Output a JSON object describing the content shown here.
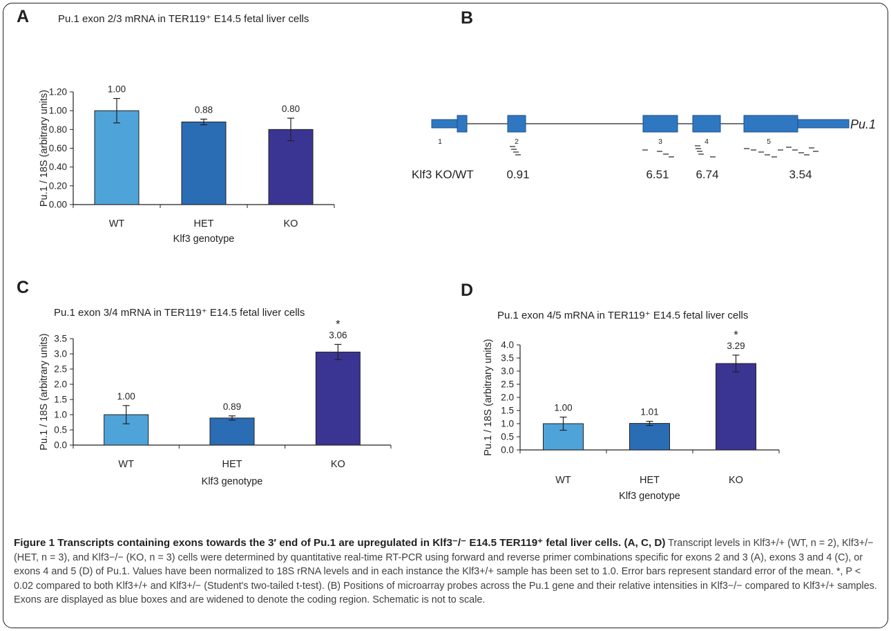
{
  "panels": {
    "a": {
      "letter": "A",
      "title": "Pu.1 exon 2/3 mRNA in TER119⁺ E14.5 fetal liver cells"
    },
    "b": {
      "letter": "B",
      "gene_label": "Pu.1",
      "ratio_label": "Klf3 KO/WT",
      "exon_numbers": [
        "1",
        "2",
        "3",
        "4",
        "5"
      ],
      "ratios": [
        "0.91",
        "6.51",
        "6.74",
        "3.54"
      ]
    },
    "c": {
      "letter": "C",
      "title": "Pu.1 exon 3/4 mRNA in TER119⁺ E14.5 fetal liver cells"
    },
    "d": {
      "letter": "D",
      "title": "Pu.1 exon 4/5 mRNA in TER119⁺ E14.5 fetal liver cells"
    }
  },
  "colors": {
    "wt": "#4ea3d8",
    "het": "#2a6db5",
    "ko": "#3a3592",
    "exon": "#2f77c1",
    "axis": "#231f20"
  },
  "chart_data": [
    {
      "id": "A",
      "type": "bar",
      "title": "Pu.1 exon 2/3 mRNA in TER119⁺ E14.5 fetal liver cells",
      "xlabel": "Klf3 genotype",
      "ylabel": "Pu.1 / 18S (arbitrary units)",
      "categories": [
        "WT",
        "HET",
        "KO"
      ],
      "values": [
        1.0,
        0.88,
        0.8
      ],
      "value_labels": [
        "1.00",
        "0.88",
        "0.80"
      ],
      "errors": [
        0.13,
        0.03,
        0.12
      ],
      "significance": [
        "",
        "",
        ""
      ],
      "ylim": [
        0,
        1.2
      ],
      "ticks": [
        "0.00",
        "0.20",
        "0.40",
        "0.60",
        "0.80",
        "1.00",
        "1.20"
      ],
      "grid": false
    },
    {
      "id": "C",
      "type": "bar",
      "title": "Pu.1 exon 3/4 mRNA in TER119⁺ E14.5 fetal liver cells",
      "xlabel": "Klf3 genotype",
      "ylabel": "Pu.1 / 18S (arbitrary units)",
      "categories": [
        "WT",
        "HET",
        "KO"
      ],
      "values": [
        1.0,
        0.89,
        3.06
      ],
      "value_labels": [
        "1.00",
        "0.89",
        "3.06"
      ],
      "errors": [
        0.3,
        0.07,
        0.25
      ],
      "significance": [
        "",
        "",
        "*"
      ],
      "ylim": [
        0,
        3.5
      ],
      "ticks": [
        "0.0",
        "0.5",
        "1.0",
        "1.5",
        "2.0",
        "2.5",
        "3.0",
        "3.5"
      ],
      "grid": false
    },
    {
      "id": "D",
      "type": "bar",
      "title": "Pu.1 exon 4/5 mRNA in TER119⁺ E14.5 fetal liver cells",
      "xlabel": "Klf3 genotype",
      "ylabel": "Pu.1 / 18S (arbitrary units)",
      "categories": [
        "WT",
        "HET",
        "KO"
      ],
      "values": [
        1.0,
        1.01,
        3.29
      ],
      "value_labels": [
        "1.00",
        "1.01",
        "3.29"
      ],
      "errors": [
        0.25,
        0.08,
        0.32
      ],
      "significance": [
        "",
        "",
        "*"
      ],
      "ylim": [
        0,
        4.0
      ],
      "ticks": [
        "0.0",
        "0.5",
        "1.0",
        "1.5",
        "2.0",
        "2.5",
        "3.0",
        "3.5",
        "4.0"
      ],
      "grid": false
    }
  ],
  "caption": {
    "title": "Figure 1 Transcripts containing exons towards the 3′ end of Pu.1 are upregulated in Klf3⁻/⁻ E14.5 TER119⁺ fetal liver cells. (A, C, D)",
    "body": "Transcript levels in Klf3+/+ (WT, n = 2), Klf3+/− (HET, n = 3), and Klf3−/− (KO, n = 3) cells were determined by quantitative real-time RT-PCR using forward and reverse primer combinations specific for exons 2 and 3 (A), exons 3 and 4 (C), or exons 4 and 5 (D) of Pu.1. Values have been normalized to 18S rRNA levels and in each instance the Klf3+/+ sample has been set to 1.0. Error bars represent standard error of the mean. *, P < 0.02 compared to both Klf3+/+ and Klf3+/− (Student's two-tailed t-test). (B) Positions of microarray probes across the Pu.1 gene and their relative intensities in Klf3−/− compared to Klf3+/+ samples. Exons are displayed as blue boxes and are widened to denote the coding region. Schematic is not to scale."
  }
}
